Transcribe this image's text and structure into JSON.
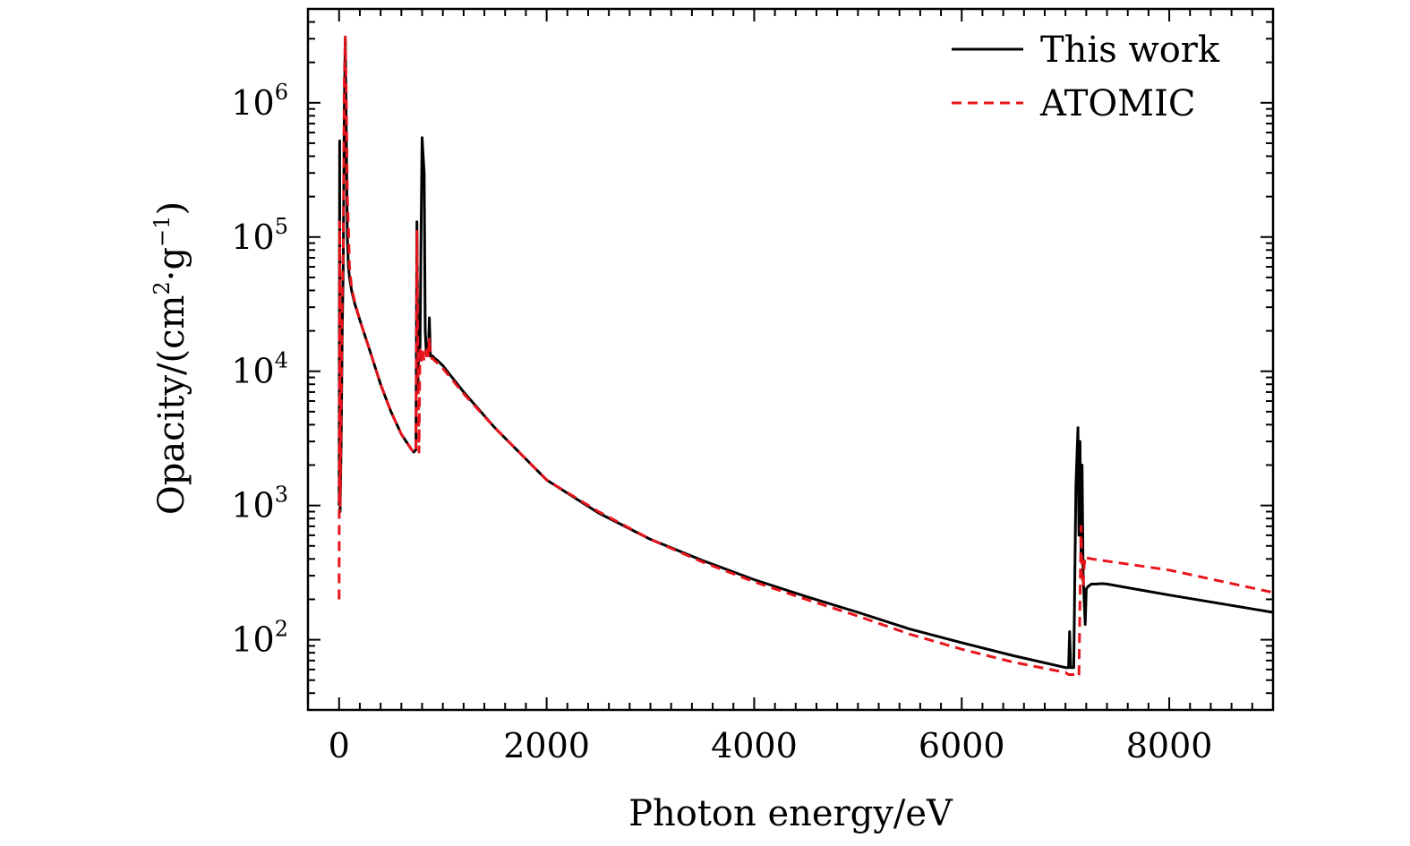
{
  "chart_data": {
    "type": "line",
    "title": "",
    "xlabel": "Photon energy/eV",
    "ylabel": "Opacity/(cm",
    "ylabel_exp": "2",
    "ylabel_mid": "·g",
    "ylabel_exp2": "−1",
    "ylabel_end": ")",
    "y_scale": "log",
    "xlim": [
      -300,
      9000
    ],
    "ylim": [
      30,
      5000000
    ],
    "x_ticks": [
      {
        "value": 0,
        "label": "0"
      },
      {
        "value": 2000,
        "label": "2000"
      },
      {
        "value": 4000,
        "label": "4000"
      },
      {
        "value": 6000,
        "label": "6000"
      },
      {
        "value": 8000,
        "label": "8000"
      }
    ],
    "y_ticks": [
      {
        "value": 100,
        "base": "10",
        "exp": "2"
      },
      {
        "value": 1000,
        "base": "10",
        "exp": "3"
      },
      {
        "value": 10000,
        "base": "10",
        "exp": "4"
      },
      {
        "value": 100000,
        "base": "10",
        "exp": "5"
      },
      {
        "value": 1000000,
        "base": "10",
        "exp": "6"
      }
    ],
    "legend_position": "top-right",
    "series": [
      {
        "name": "This work",
        "color": "#000000",
        "style": "solid",
        "x": [
          0,
          5,
          10,
          20,
          30,
          40,
          50,
          60,
          70,
          80,
          90,
          100,
          120,
          150,
          200,
          300,
          400,
          500,
          600,
          700,
          720,
          740,
          750,
          760,
          770,
          780,
          790,
          800,
          810,
          820,
          830,
          840,
          850,
          860,
          870,
          880,
          900,
          920,
          950,
          1000,
          1200,
          1500,
          2000,
          2500,
          3000,
          3500,
          4000,
          4500,
          5000,
          5500,
          6000,
          6500,
          7000,
          7030,
          7040,
          7050,
          7080,
          7100,
          7120,
          7130,
          7140,
          7150,
          7160,
          7170,
          7180,
          7190,
          7200,
          7220,
          7250,
          7300,
          7350,
          7400,
          8000,
          9000
        ],
        "y": [
          1000,
          520000,
          900,
          3000,
          20000,
          60000,
          900000,
          3000000,
          500000,
          100000,
          60000,
          50000,
          40000,
          32000,
          24000,
          14000,
          8000,
          5000,
          3400,
          2600,
          2500,
          2600,
          130000,
          8000,
          20000,
          15000,
          100000,
          550000,
          400000,
          300000,
          20000,
          14000,
          16000,
          14000,
          25000,
          13000,
          13000,
          12500,
          12000,
          11000,
          7000,
          3800,
          1550,
          880,
          560,
          390,
          280,
          210,
          160,
          120,
          95,
          76,
          62,
          62,
          115,
          62,
          62,
          1400,
          3800,
          600,
          3000,
          400,
          2000,
          300,
          200,
          130,
          240,
          250,
          260,
          260,
          262,
          260,
          215,
          160
        ]
      },
      {
        "name": "ATOMIC",
        "color": "#e8141c",
        "style": "dashed",
        "x": [
          0,
          5,
          10,
          20,
          30,
          40,
          50,
          60,
          70,
          80,
          90,
          100,
          120,
          150,
          200,
          300,
          400,
          500,
          600,
          700,
          720,
          740,
          750,
          760,
          770,
          780,
          790,
          800,
          810,
          820,
          830,
          840,
          850,
          860,
          870,
          880,
          900,
          920,
          950,
          1000,
          1200,
          1500,
          2000,
          2500,
          3000,
          3500,
          4000,
          4500,
          5000,
          5500,
          6000,
          6500,
          7000,
          7030,
          7040,
          7050,
          7080,
          7100,
          7120,
          7130,
          7140,
          7150,
          7160,
          7170,
          7180,
          7190,
          7200,
          7220,
          7250,
          7300,
          7350,
          7400,
          8000,
          9000
        ],
        "y": [
          200,
          130000,
          1000,
          5000,
          40000,
          80000,
          1500000,
          3100000,
          1000000,
          200000,
          120000,
          60000,
          42000,
          33000,
          24000,
          14000,
          8000,
          5000,
          3400,
          2600,
          2500,
          2500,
          110000,
          10000,
          2500,
          15000,
          12000,
          14000,
          13000,
          12000,
          14000,
          13000,
          15000,
          13000,
          18000,
          12500,
          12500,
          12000,
          11500,
          10500,
          6800,
          3800,
          1550,
          900,
          560,
          380,
          270,
          200,
          150,
          110,
          85,
          68,
          57,
          55,
          55,
          55,
          55,
          55,
          53,
          55,
          200,
          700,
          300,
          250,
          350,
          420,
          410,
          405,
          400,
          395,
          390,
          385,
          330,
          225
        ]
      }
    ]
  }
}
